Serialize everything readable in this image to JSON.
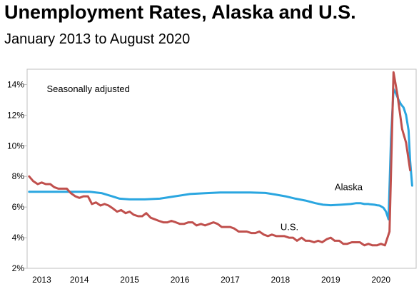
{
  "chart_data": {
    "type": "line",
    "title": "Unemployment Rates, Alaska and U.S.",
    "subtitle": "January 2013 to August 2020",
    "xlabel": "",
    "ylabel": "",
    "xlim": [
      2012.96,
      2020.7
    ],
    "ylim": [
      2,
      15
    ],
    "x_ticks": [
      {
        "value": 2013.25,
        "label": "2013"
      },
      {
        "value": 2014.0,
        "label": "2014"
      },
      {
        "value": 2015.0,
        "label": "2015"
      },
      {
        "value": 2016.0,
        "label": "2016"
      },
      {
        "value": 2017.0,
        "label": "2017"
      },
      {
        "value": 2018.0,
        "label": "2018"
      },
      {
        "value": 2019.0,
        "label": "2019"
      },
      {
        "value": 2020.0,
        "label": "2020"
      }
    ],
    "y_ticks": [
      "2%",
      "4%",
      "6%",
      "8%",
      "10%",
      "12%",
      "14%"
    ],
    "y_tick_values": [
      2,
      4,
      6,
      8,
      10,
      12,
      14
    ],
    "annotations": [
      {
        "text": "Seasonally adjusted",
        "x": 2013.35,
        "y": 13.5
      },
      {
        "text": "Alaska",
        "x": 2019.08,
        "y": 7.1
      },
      {
        "text": "U.S.",
        "x": 2018.0,
        "y": 4.5
      }
    ],
    "series": [
      {
        "name": "Alaska",
        "color": "#2aa6e0",
        "x": [
          2013.0,
          2013.5,
          2013.9,
          2014.2,
          2014.45,
          2014.65,
          2014.8,
          2015.0,
          2015.3,
          2015.6,
          2015.9,
          2016.2,
          2016.5,
          2016.8,
          2017.1,
          2017.4,
          2017.7,
          2017.9,
          2018.1,
          2018.3,
          2018.5,
          2018.7,
          2018.85,
          2019.0,
          2019.2,
          2019.4,
          2019.5,
          2019.6,
          2019.67,
          2019.72,
          2019.75,
          2019.78,
          2019.82,
          2019.87,
          2019.92,
          2019.97,
          2020.0,
          2020.05,
          2020.1,
          2020.15,
          2020.2,
          2020.25,
          2020.3,
          2020.35,
          2020.4,
          2020.45,
          2020.5,
          2020.55,
          2020.58,
          2020.62
        ],
        "values": [
          7.0,
          7.0,
          7.0,
          7.0,
          6.9,
          6.7,
          6.55,
          6.5,
          6.5,
          6.55,
          6.7,
          6.85,
          6.9,
          6.95,
          6.95,
          6.95,
          6.92,
          6.82,
          6.7,
          6.55,
          6.42,
          6.25,
          6.15,
          6.12,
          6.15,
          6.2,
          6.25,
          6.25,
          6.2,
          6.2,
          6.2,
          6.18,
          6.17,
          6.15,
          6.12,
          6.1,
          6.05,
          5.95,
          5.7,
          5.2,
          10.5,
          13.7,
          13.4,
          13.0,
          12.7,
          12.5,
          12.0,
          11.0,
          9.0,
          7.4
        ]
      },
      {
        "name": "U.S.",
        "color": "#c0504d",
        "x": [
          2013.0,
          2013.08,
          2013.17,
          2013.25,
          2013.33,
          2013.42,
          2013.5,
          2013.58,
          2013.67,
          2013.75,
          2013.83,
          2013.92,
          2014.0,
          2014.08,
          2014.17,
          2014.25,
          2014.33,
          2014.42,
          2014.5,
          2014.58,
          2014.67,
          2014.75,
          2014.83,
          2014.92,
          2015.0,
          2015.08,
          2015.17,
          2015.25,
          2015.33,
          2015.42,
          2015.5,
          2015.58,
          2015.67,
          2015.75,
          2015.83,
          2015.92,
          2016.0,
          2016.08,
          2016.17,
          2016.25,
          2016.33,
          2016.42,
          2016.5,
          2016.58,
          2016.67,
          2016.75,
          2016.83,
          2016.92,
          2017.0,
          2017.08,
          2017.17,
          2017.25,
          2017.33,
          2017.42,
          2017.5,
          2017.58,
          2017.67,
          2017.75,
          2017.83,
          2017.92,
          2018.0,
          2018.08,
          2018.17,
          2018.25,
          2018.33,
          2018.42,
          2018.5,
          2018.58,
          2018.67,
          2018.75,
          2018.83,
          2018.92,
          2019.0,
          2019.08,
          2019.17,
          2019.25,
          2019.33,
          2019.42,
          2019.5,
          2019.58,
          2019.67,
          2019.75,
          2019.83,
          2019.92,
          2020.0,
          2020.08,
          2020.17,
          2020.25,
          2020.33,
          2020.42,
          2020.5,
          2020.58
        ],
        "values": [
          8.0,
          7.7,
          7.5,
          7.6,
          7.5,
          7.5,
          7.3,
          7.2,
          7.2,
          7.2,
          6.9,
          6.7,
          6.6,
          6.7,
          6.7,
          6.2,
          6.3,
          6.1,
          6.2,
          6.1,
          5.9,
          5.7,
          5.8,
          5.6,
          5.7,
          5.5,
          5.4,
          5.4,
          5.6,
          5.3,
          5.2,
          5.1,
          5.0,
          5.0,
          5.1,
          5.0,
          4.9,
          4.9,
          5.0,
          5.0,
          4.8,
          4.9,
          4.8,
          4.9,
          5.0,
          4.9,
          4.7,
          4.7,
          4.7,
          4.6,
          4.4,
          4.4,
          4.4,
          4.3,
          4.3,
          4.4,
          4.2,
          4.1,
          4.2,
          4.1,
          4.1,
          4.1,
          4.0,
          4.0,
          3.8,
          4.0,
          3.8,
          3.8,
          3.7,
          3.8,
          3.7,
          3.9,
          4.0,
          3.8,
          3.8,
          3.6,
          3.6,
          3.7,
          3.7,
          3.7,
          3.5,
          3.6,
          3.5,
          3.5,
          3.6,
          3.5,
          4.4,
          14.8,
          13.3,
          11.1,
          10.2,
          8.4
        ]
      }
    ]
  }
}
